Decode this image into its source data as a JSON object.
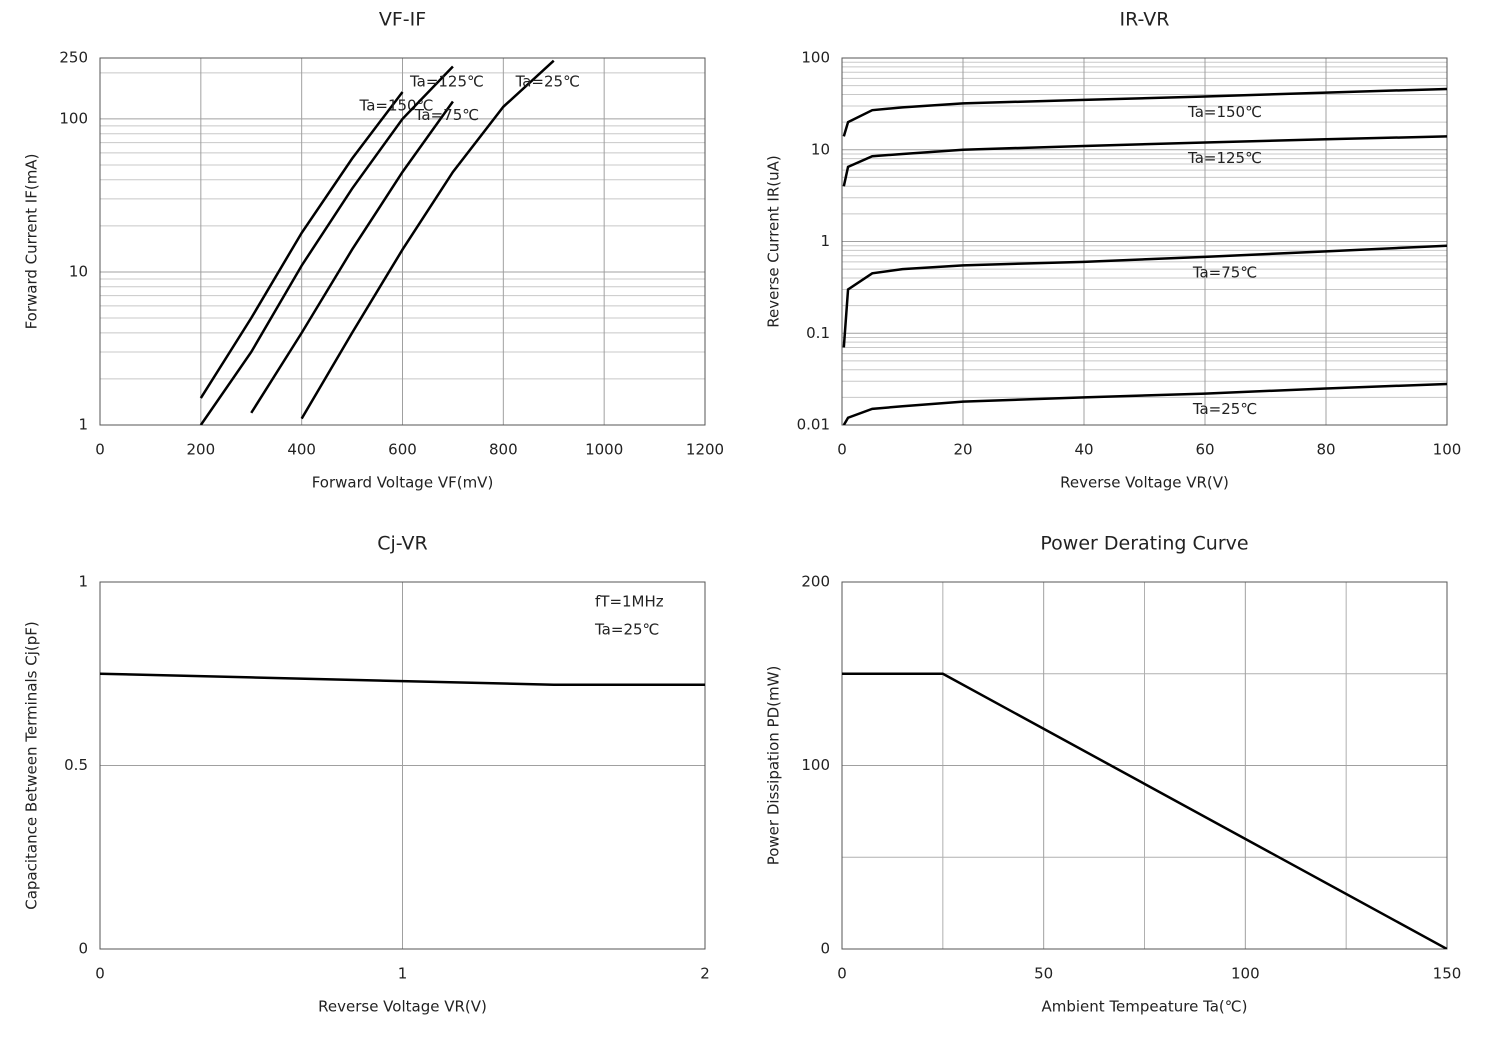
{
  "chart_data": [
    {
      "type": "line",
      "title": "VF-IF",
      "xlabel": "Forward Voltage VF(mV)",
      "ylabel": "Forward Current IF(mA)",
      "x": [
        200,
        300,
        400,
        500,
        600,
        700,
        800,
        900,
        1000,
        1100,
        1200
      ],
      "series": [
        {
          "name": "Ta=150℃",
          "color": "#000000",
          "values": [
            1.5,
            5,
            18,
            55,
            150,
            null,
            null,
            null,
            null,
            null,
            null
          ]
        },
        {
          "name": "Ta=125℃",
          "color": "#000000",
          "values": [
            1,
            3,
            11,
            35,
            100,
            220,
            null,
            null,
            null,
            null,
            null
          ]
        },
        {
          "name": "Ta=75℃",
          "color": "#000000",
          "values": [
            null,
            1.2,
            4,
            14,
            45,
            130,
            null,
            null,
            null,
            null,
            null
          ]
        },
        {
          "name": "Ta=25℃",
          "color": "#000000",
          "values": [
            null,
            null,
            1.1,
            4,
            14,
            45,
            120,
            240,
            null,
            null,
            null
          ]
        }
      ],
      "xlim": [
        0,
        1200
      ],
      "xticks": [
        0,
        200,
        400,
        600,
        800,
        1000,
        1200
      ],
      "ylim": [
        1,
        250
      ],
      "yticks": [
        1,
        10,
        100,
        250
      ],
      "ylog": true,
      "grid": true,
      "minor_grid": true
    },
    {
      "type": "line",
      "title": "IR-VR",
      "xlabel": "Reverse Voltage VR(V)",
      "ylabel": "Reverse Current IR(uA)",
      "x": [
        0.3,
        1,
        5,
        10,
        20,
        40,
        60,
        80,
        100
      ],
      "series": [
        {
          "name": "Ta=150℃",
          "color": "#000000",
          "values": [
            14,
            20,
            27,
            29,
            32,
            35,
            38,
            42,
            46
          ]
        },
        {
          "name": "Ta=125℃",
          "color": "#000000",
          "values": [
            4,
            6.5,
            8.5,
            9,
            10,
            11,
            12,
            13,
            14
          ]
        },
        {
          "name": "Ta=75℃",
          "color": "#000000",
          "values": [
            0.07,
            0.3,
            0.45,
            0.5,
            0.55,
            0.6,
            0.68,
            0.78,
            0.9
          ]
        },
        {
          "name": "Ta=25℃",
          "color": "#000000",
          "values": [
            0.01,
            0.012,
            0.015,
            0.016,
            0.018,
            0.02,
            0.022,
            0.025,
            0.028
          ]
        }
      ],
      "xlim": [
        0,
        100
      ],
      "xticks": [
        0,
        20,
        40,
        60,
        80,
        100
      ],
      "ylim": [
        0.01,
        100
      ],
      "yticks": [
        0.01,
        0.1,
        1,
        10,
        100
      ],
      "ylog": true,
      "grid": true,
      "minor_grid": true
    },
    {
      "type": "line",
      "title": "Cj-VR",
      "xlabel": "Reverse Voltage VR(V)",
      "ylabel": "Capacitance Between Terminals Cj(pF)",
      "x": [
        0,
        0.5,
        1,
        1.5,
        2
      ],
      "series": [
        {
          "name": "Cj",
          "color": "#000000",
          "values": [
            0.75,
            0.74,
            0.73,
            0.72,
            0.72
          ]
        }
      ],
      "annotations": [
        "fT=1MHz",
        "Ta=25℃"
      ],
      "xlim": [
        0,
        2
      ],
      "xticks": [
        0,
        1,
        2
      ],
      "ylim": [
        0,
        1
      ],
      "yticks": [
        0,
        0.5,
        1
      ],
      "grid": true
    },
    {
      "type": "line",
      "title": "Power Derating Curve",
      "xlabel": "Ambient Tempeature Ta(℃)",
      "ylabel": "Power Dissipation PD(mW)",
      "x": [
        0,
        25,
        150
      ],
      "series": [
        {
          "name": "PD",
          "color": "#000000",
          "values": [
            150,
            150,
            0
          ]
        }
      ],
      "xlim": [
        0,
        150
      ],
      "xticks": [
        0,
        50,
        100,
        150
      ],
      "xminorticks": [
        25,
        75,
        125
      ],
      "ylim": [
        0,
        200
      ],
      "yticks": [
        0,
        100,
        200
      ],
      "yminorticks": [
        50,
        150
      ],
      "grid": true
    }
  ]
}
